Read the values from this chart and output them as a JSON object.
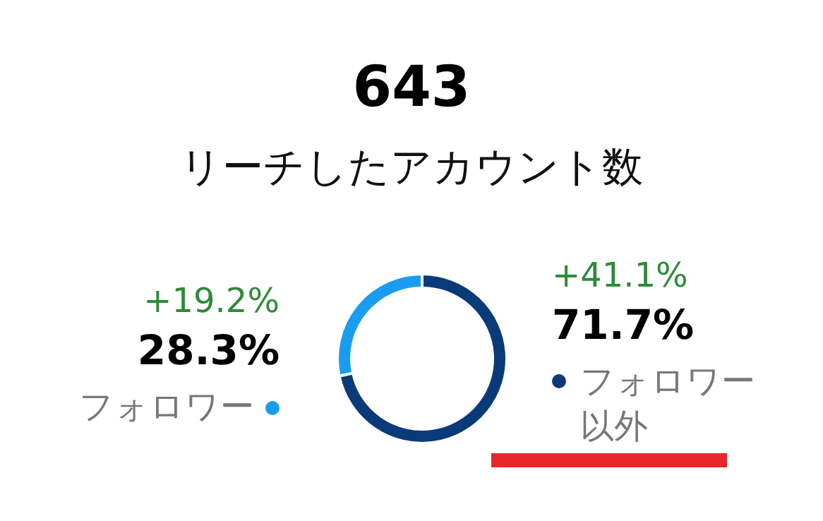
{
  "chart_data": {
    "type": "donut",
    "title": "643",
    "subtitle": "リーチしたアカウント数",
    "categories": [
      "フォロワー",
      "フォロワー以外"
    ],
    "values": [
      28.3,
      71.7
    ],
    "colors": [
      "#1a9cf0",
      "#0b3a78"
    ],
    "value_labels": [
      "28.3%",
      "71.7%"
    ],
    "annotations": [
      "+19.2%",
      "+41.1%"
    ]
  }
}
